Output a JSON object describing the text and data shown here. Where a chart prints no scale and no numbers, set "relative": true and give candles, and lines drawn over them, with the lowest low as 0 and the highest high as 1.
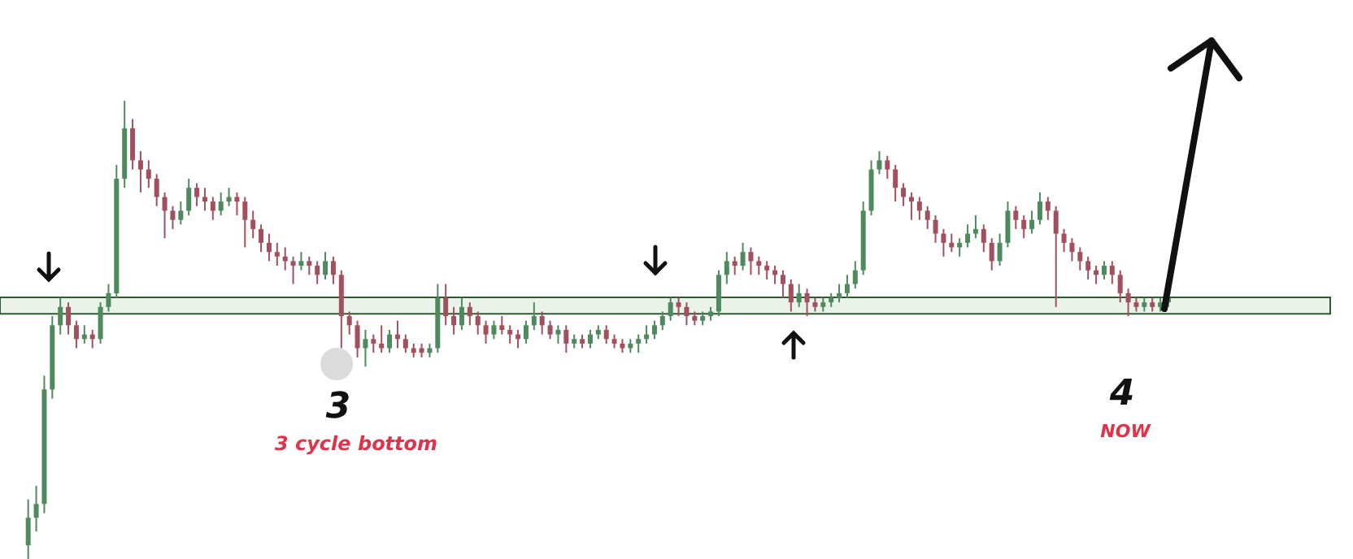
{
  "chart_data": {
    "type": "candlestick",
    "relative": true,
    "ohlc": [
      [
        0.03,
        0.13,
        0,
        0.09
      ],
      [
        0.09,
        0.16,
        0.06,
        0.12
      ],
      [
        0.12,
        0.4,
        0.1,
        0.37
      ],
      [
        0.37,
        0.53,
        0.35,
        0.51
      ],
      [
        0.51,
        0.57,
        0.49,
        0.55
      ],
      [
        0.55,
        0.56,
        0.49,
        0.51
      ],
      [
        0.51,
        0.52,
        0.46,
        0.48
      ],
      [
        0.48,
        0.51,
        0.47,
        0.49
      ],
      [
        0.49,
        0.5,
        0.46,
        0.48
      ],
      [
        0.48,
        0.56,
        0.47,
        0.55
      ],
      [
        0.55,
        0.6,
        0.54,
        0.58
      ],
      [
        0.58,
        0.86,
        0.57,
        0.83
      ],
      [
        0.83,
        1.0,
        0.81,
        0.94
      ],
      [
        0.94,
        0.96,
        0.85,
        0.87
      ],
      [
        0.87,
        0.89,
        0.8,
        0.85
      ],
      [
        0.85,
        0.87,
        0.81,
        0.83
      ],
      [
        0.83,
        0.84,
        0.77,
        0.79
      ],
      [
        0.79,
        0.8,
        0.7,
        0.76
      ],
      [
        0.76,
        0.77,
        0.72,
        0.74
      ],
      [
        0.74,
        0.78,
        0.73,
        0.76
      ],
      [
        0.76,
        0.83,
        0.75,
        0.81
      ],
      [
        0.81,
        0.82,
        0.77,
        0.79
      ],
      [
        0.79,
        0.81,
        0.76,
        0.78
      ],
      [
        0.78,
        0.79,
        0.74,
        0.76
      ],
      [
        0.76,
        0.8,
        0.75,
        0.78
      ],
      [
        0.78,
        0.81,
        0.77,
        0.79
      ],
      [
        0.79,
        0.8,
        0.75,
        0.78
      ],
      [
        0.78,
        0.79,
        0.68,
        0.74
      ],
      [
        0.74,
        0.76,
        0.7,
        0.72
      ],
      [
        0.72,
        0.73,
        0.67,
        0.69
      ],
      [
        0.69,
        0.71,
        0.65,
        0.67
      ],
      [
        0.67,
        0.69,
        0.64,
        0.66
      ],
      [
        0.66,
        0.68,
        0.63,
        0.65
      ],
      [
        0.65,
        0.66,
        0.6,
        0.64
      ],
      [
        0.64,
        0.67,
        0.63,
        0.65
      ],
      [
        0.65,
        0.66,
        0.62,
        0.64
      ],
      [
        0.64,
        0.65,
        0.6,
        0.62
      ],
      [
        0.62,
        0.67,
        0.61,
        0.65
      ],
      [
        0.65,
        0.66,
        0.6,
        0.62
      ],
      [
        0.62,
        0.63,
        0.46,
        0.53
      ],
      [
        0.53,
        0.54,
        0.49,
        0.51
      ],
      [
        0.51,
        0.52,
        0.44,
        0.46
      ],
      [
        0.46,
        0.5,
        0.42,
        0.48
      ],
      [
        0.48,
        0.49,
        0.45,
        0.47
      ],
      [
        0.47,
        0.51,
        0.45,
        0.46
      ],
      [
        0.46,
        0.5,
        0.45,
        0.49
      ],
      [
        0.49,
        0.52,
        0.46,
        0.48
      ],
      [
        0.48,
        0.49,
        0.45,
        0.46
      ],
      [
        0.46,
        0.47,
        0.44,
        0.45
      ],
      [
        0.46,
        0.47,
        0.44,
        0.45
      ],
      [
        0.45,
        0.47,
        0.44,
        0.46
      ],
      [
        0.46,
        0.6,
        0.45,
        0.57
      ],
      [
        0.57,
        0.6,
        0.51,
        0.53
      ],
      [
        0.53,
        0.55,
        0.49,
        0.51
      ],
      [
        0.51,
        0.57,
        0.5,
        0.55
      ],
      [
        0.55,
        0.56,
        0.51,
        0.53
      ],
      [
        0.53,
        0.54,
        0.49,
        0.51
      ],
      [
        0.51,
        0.52,
        0.47,
        0.49
      ],
      [
        0.49,
        0.52,
        0.48,
        0.51
      ],
      [
        0.51,
        0.53,
        0.49,
        0.5
      ],
      [
        0.5,
        0.51,
        0.47,
        0.49
      ],
      [
        0.49,
        0.5,
        0.46,
        0.48
      ],
      [
        0.48,
        0.52,
        0.47,
        0.51
      ],
      [
        0.51,
        0.56,
        0.5,
        0.53
      ],
      [
        0.53,
        0.54,
        0.49,
        0.51
      ],
      [
        0.51,
        0.52,
        0.48,
        0.49
      ],
      [
        0.49,
        0.51,
        0.47,
        0.5
      ],
      [
        0.5,
        0.51,
        0.45,
        0.47
      ],
      [
        0.47,
        0.49,
        0.46,
        0.48
      ],
      [
        0.48,
        0.49,
        0.46,
        0.47
      ],
      [
        0.47,
        0.5,
        0.46,
        0.49
      ],
      [
        0.49,
        0.51,
        0.48,
        0.5
      ],
      [
        0.5,
        0.51,
        0.47,
        0.48
      ],
      [
        0.48,
        0.49,
        0.46,
        0.47
      ],
      [
        0.47,
        0.48,
        0.45,
        0.46
      ],
      [
        0.46,
        0.48,
        0.45,
        0.47
      ],
      [
        0.47,
        0.49,
        0.45,
        0.48
      ],
      [
        0.48,
        0.51,
        0.47,
        0.49
      ],
      [
        0.49,
        0.52,
        0.48,
        0.51
      ],
      [
        0.51,
        0.54,
        0.5,
        0.53
      ],
      [
        0.53,
        0.57,
        0.52,
        0.56
      ],
      [
        0.56,
        0.57,
        0.53,
        0.55
      ],
      [
        0.55,
        0.56,
        0.51,
        0.53
      ],
      [
        0.53,
        0.54,
        0.51,
        0.52
      ],
      [
        0.52,
        0.54,
        0.51,
        0.53
      ],
      [
        0.53,
        0.55,
        0.52,
        0.54
      ],
      [
        0.54,
        0.63,
        0.53,
        0.62
      ],
      [
        0.62,
        0.67,
        0.6,
        0.65
      ],
      [
        0.65,
        0.66,
        0.62,
        0.64
      ],
      [
        0.64,
        0.69,
        0.63,
        0.67
      ],
      [
        0.67,
        0.68,
        0.62,
        0.65
      ],
      [
        0.65,
        0.66,
        0.62,
        0.64
      ],
      [
        0.64,
        0.65,
        0.61,
        0.63
      ],
      [
        0.63,
        0.64,
        0.6,
        0.62
      ],
      [
        0.62,
        0.63,
        0.57,
        0.6
      ],
      [
        0.6,
        0.61,
        0.54,
        0.56
      ],
      [
        0.56,
        0.6,
        0.55,
        0.58
      ],
      [
        0.58,
        0.59,
        0.53,
        0.56
      ],
      [
        0.56,
        0.57,
        0.54,
        0.55
      ],
      [
        0.55,
        0.57,
        0.54,
        0.56
      ],
      [
        0.56,
        0.58,
        0.55,
        0.57
      ],
      [
        0.57,
        0.6,
        0.56,
        0.58
      ],
      [
        0.58,
        0.62,
        0.57,
        0.6
      ],
      [
        0.6,
        0.65,
        0.59,
        0.63
      ],
      [
        0.63,
        0.78,
        0.62,
        0.76
      ],
      [
        0.76,
        0.87,
        0.75,
        0.85
      ],
      [
        0.85,
        0.89,
        0.84,
        0.87
      ],
      [
        0.87,
        0.88,
        0.83,
        0.85
      ],
      [
        0.85,
        0.86,
        0.78,
        0.81
      ],
      [
        0.81,
        0.82,
        0.77,
        0.79
      ],
      [
        0.79,
        0.8,
        0.74,
        0.78
      ],
      [
        0.78,
        0.79,
        0.74,
        0.76
      ],
      [
        0.76,
        0.77,
        0.72,
        0.74
      ],
      [
        0.74,
        0.75,
        0.69,
        0.71
      ],
      [
        0.71,
        0.72,
        0.66,
        0.69
      ],
      [
        0.69,
        0.71,
        0.67,
        0.68
      ],
      [
        0.68,
        0.7,
        0.66,
        0.69
      ],
      [
        0.69,
        0.73,
        0.68,
        0.71
      ],
      [
        0.71,
        0.75,
        0.7,
        0.72
      ],
      [
        0.72,
        0.73,
        0.67,
        0.69
      ],
      [
        0.69,
        0.7,
        0.63,
        0.65
      ],
      [
        0.65,
        0.71,
        0.64,
        0.69
      ],
      [
        0.69,
        0.78,
        0.68,
        0.76
      ],
      [
        0.76,
        0.77,
        0.72,
        0.74
      ],
      [
        0.74,
        0.75,
        0.7,
        0.72
      ],
      [
        0.72,
        0.76,
        0.71,
        0.74
      ],
      [
        0.74,
        0.8,
        0.73,
        0.78
      ],
      [
        0.78,
        0.79,
        0.74,
        0.76
      ],
      [
        0.76,
        0.77,
        0.55,
        0.71
      ],
      [
        0.71,
        0.72,
        0.67,
        0.69
      ],
      [
        0.69,
        0.7,
        0.65,
        0.67
      ],
      [
        0.67,
        0.68,
        0.63,
        0.65
      ],
      [
        0.65,
        0.66,
        0.61,
        0.63
      ],
      [
        0.63,
        0.64,
        0.6,
        0.62
      ],
      [
        0.62,
        0.65,
        0.61,
        0.64
      ],
      [
        0.64,
        0.65,
        0.6,
        0.62
      ],
      [
        0.62,
        0.63,
        0.56,
        0.58
      ],
      [
        0.58,
        0.59,
        0.53,
        0.56
      ],
      [
        0.56,
        0.57,
        0.54,
        0.55
      ],
      [
        0.55,
        0.57,
        0.54,
        0.56
      ],
      [
        0.56,
        0.57,
        0.54,
        0.55
      ],
      [
        0.55,
        0.57,
        0.54,
        0.56
      ],
      [
        0.56,
        0.58,
        0.55,
        0.57
      ]
    ],
    "categories": [
      null,
      null,
      null,
      null,
      null,
      null,
      null,
      null,
      null,
      null,
      null,
      null,
      null,
      null,
      null,
      null,
      null,
      null,
      null,
      null,
      null,
      null,
      null,
      null,
      null,
      null,
      null,
      null,
      null,
      null,
      null,
      null,
      null,
      null,
      null,
      null,
      null,
      null,
      null,
      null,
      null,
      null,
      null,
      null,
      null,
      null,
      null,
      null,
      null,
      null,
      null,
      null,
      null,
      null,
      null,
      null,
      null,
      null,
      null,
      null,
      null,
      null,
      null,
      null,
      null,
      null,
      null,
      null,
      null,
      null,
      null,
      null,
      null,
      null,
      null,
      null,
      null,
      null,
      null,
      null,
      null,
      null,
      null,
      null,
      null,
      null,
      null,
      null,
      null,
      null,
      null,
      null,
      null,
      null,
      null,
      null,
      null,
      null,
      null,
      null,
      null,
      null,
      null,
      null,
      null,
      null,
      null,
      null,
      null,
      null,
      null,
      null,
      null,
      null,
      null,
      null,
      null,
      null,
      null,
      null,
      null,
      null,
      null,
      null,
      null,
      null,
      null,
      null,
      null,
      null,
      null,
      null,
      null,
      null,
      null,
      null,
      null,
      null,
      null,
      null,
      null,
      null,
      null
    ],
    "colors": [
      "#4f8a5e",
      "#4f8a5e",
      "#4f8a5e",
      "#4f8a5e",
      "#4f8a5e",
      "#a3505e",
      "#a3505e",
      "#4f8a5e",
      "#a3505e",
      "#4f8a5e",
      "#4f8a5e",
      "#4f8a5e",
      "#4f8a5e",
      "#a3505e",
      "#a3505e",
      "#a3505e",
      "#a3505e",
      "#a3505e",
      "#a3505e",
      "#4f8a5e",
      "#4f8a5e",
      "#a3505e",
      "#a3505e",
      "#a3505e",
      "#4f8a5e",
      "#4f8a5e",
      "#a3505e",
      "#a3505e",
      "#a3505e",
      "#a3505e",
      "#a3505e",
      "#a3505e",
      "#a3505e",
      "#a3505e",
      "#4f8a5e",
      "#a3505e",
      "#a3505e",
      "#4f8a5e",
      "#a3505e",
      "#a3505e",
      "#a3505e",
      "#a3505e",
      "#4f8a5e",
      "#a3505e",
      "#a3505e",
      "#4f8a5e",
      "#a3505e",
      "#a3505e",
      "#a3505e",
      "#a3505e",
      "#4f8a5e",
      "#4f8a5e",
      "#a3505e",
      "#a3505e",
      "#4f8a5e",
      "#a3505e",
      "#a3505e",
      "#a3505e",
      "#4f8a5e",
      "#a3505e",
      "#a3505e",
      "#a3505e",
      "#4f8a5e",
      "#4f8a5e",
      "#a3505e",
      "#a3505e",
      "#4f8a5e",
      "#a3505e",
      "#4f8a5e",
      "#a3505e",
      "#4f8a5e",
      "#4f8a5e",
      "#a3505e",
      "#a3505e",
      "#a3505e",
      "#4f8a5e",
      "#4f8a5e",
      "#4f8a5e",
      "#4f8a5e",
      "#4f8a5e",
      "#4f8a5e",
      "#a3505e",
      "#a3505e",
      "#a3505e",
      "#4f8a5e",
      "#4f8a5e",
      "#4f8a5e",
      "#4f8a5e",
      "#a3505e",
      "#4f8a5e",
      "#a3505e",
      "#a3505e",
      "#a3505e",
      "#a3505e",
      "#a3505e",
      "#a3505e",
      "#4f8a5e",
      "#a3505e",
      "#a3505e",
      "#4f8a5e",
      "#4f8a5e",
      "#4f8a5e",
      "#4f8a5e",
      "#4f8a5e",
      "#4f8a5e",
      "#4f8a5e",
      "#4f8a5e",
      "#a3505e",
      "#a3505e",
      "#a3505e",
      "#a3505e",
      "#a3505e",
      "#a3505e",
      "#a3505e",
      "#a3505e",
      "#a3505e",
      "#4f8a5e",
      "#4f8a5e",
      "#4f8a5e",
      "#a3505e",
      "#a3505e",
      "#4f8a5e",
      "#4f8a5e",
      "#a3505e",
      "#a3505e",
      "#4f8a5e",
      "#4f8a5e",
      "#a3505e",
      "#a3505e",
      "#a3505e",
      "#a3505e",
      "#a3505e",
      "#a3505e",
      "#a3505e",
      "#4f8a5e",
      "#a3505e",
      "#a3505e",
      "#a3505e",
      "#a3505e",
      "#4f8a5e",
      "#a3505e",
      "#4f8a5e",
      "#4f8a5e"
    ],
    "bands": [
      {
        "axis": "y",
        "from": 0.535,
        "to": 0.571,
        "color": "#eaf3ea"
      }
    ],
    "annotations": [
      "3",
      "3 cycle bottom",
      "4",
      "NOW"
    ]
  }
}
